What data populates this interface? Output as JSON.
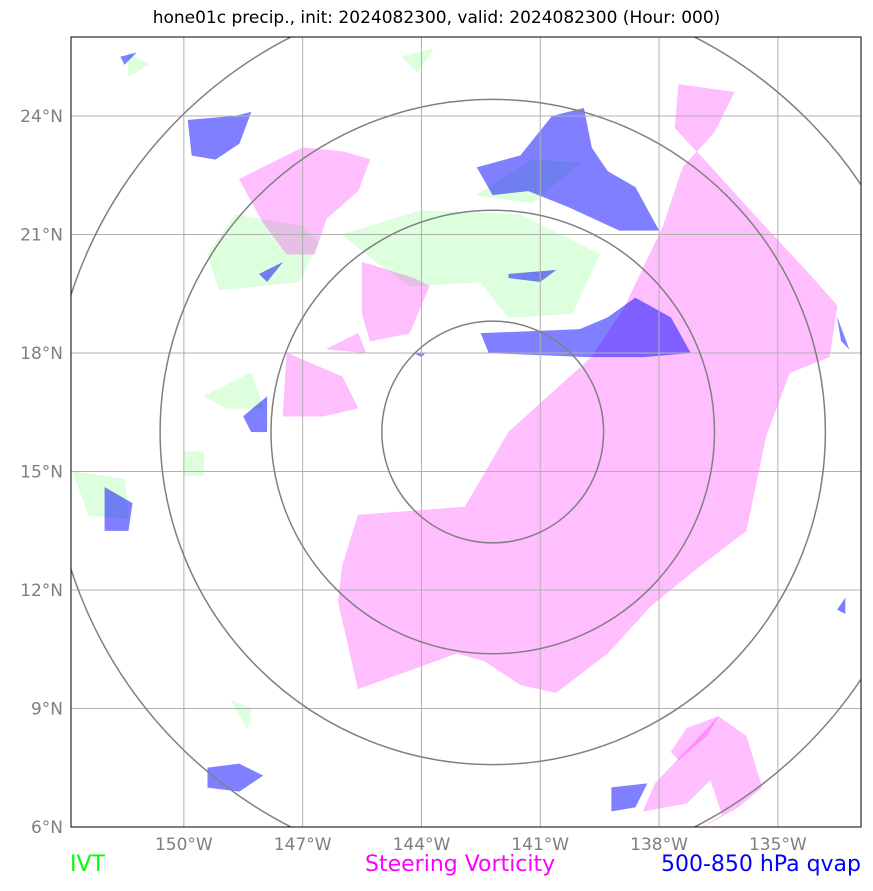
{
  "title": "hone01c precip., init: 2024082300, valid: 2024082300 (Hour: 000)",
  "legend": {
    "ivt": "IVT",
    "steering_vorticity": "Steering Vorticity",
    "qvap": "500-850 hPa qvap"
  },
  "colors": {
    "ivt": "#00ff00",
    "steering_vorticity": "#ff00ff",
    "qvap": "#0000ff",
    "grid": "#b0b0b0",
    "range_rings": "#808080"
  },
  "chart_data": {
    "type": "map",
    "title": "hone01c precip., init: 2024082300, valid: 2024082300 (Hour: 000)",
    "x_ticks": [
      "150°W",
      "147°W",
      "144°W",
      "141°W",
      "138°W",
      "135°W"
    ],
    "x_tick_values": [
      -150,
      -147,
      -144,
      -141,
      -138,
      -135
    ],
    "y_ticks": [
      "24°N",
      "21°N",
      "18°N",
      "15°N",
      "12°N",
      "9°N",
      "6°N"
    ],
    "y_tick_values": [
      24,
      21,
      18,
      15,
      12,
      9,
      6
    ],
    "xlim": [
      -152.85,
      -132.9
    ],
    "ylim": [
      6,
      26
    ],
    "center": [
      -142.2,
      16.0
    ],
    "range_rings_deg": [
      2.8,
      5.6,
      8.4,
      11.2
    ],
    "grid": true,
    "series": [
      {
        "name": "IVT",
        "color": "#00ff00",
        "polygons": [
          [
            [
              -149.1,
              19.6
            ],
            [
              -147.1,
              19.8
            ],
            [
              -146.6,
              20.8
            ],
            [
              -147.0,
              21.2
            ],
            [
              -148.7,
              21.5
            ],
            [
              -149.4,
              20.5
            ]
          ],
          [
            [
              -146.0,
              21.0
            ],
            [
              -144.0,
              21.6
            ],
            [
              -141.5,
              21.5
            ],
            [
              -139.5,
              20.5
            ],
            [
              -140.2,
              19.0
            ],
            [
              -141.8,
              18.9
            ],
            [
              -142.5,
              19.8
            ],
            [
              -144.3,
              19.7
            ],
            [
              -145.0,
              20.2
            ]
          ],
          [
            [
              -142.6,
              22.0
            ],
            [
              -141.2,
              22.9
            ],
            [
              -140.0,
              22.8
            ],
            [
              -141.2,
              21.8
            ]
          ],
          [
            [
              -149.5,
              16.9
            ],
            [
              -148.3,
              17.5
            ],
            [
              -148.0,
              16.6
            ],
            [
              -148.9,
              16.6
            ]
          ],
          [
            [
              -152.8,
              15.0
            ],
            [
              -151.5,
              14.8
            ],
            [
              -151.4,
              13.8
            ],
            [
              -152.4,
              13.9
            ]
          ],
          [
            [
              -150.0,
              15.5
            ],
            [
              -149.5,
              15.5
            ],
            [
              -149.5,
              14.9
            ],
            [
              -150.0,
              14.9
            ]
          ],
          [
            [
              -144.5,
              25.5
            ],
            [
              -143.7,
              25.7
            ],
            [
              -144.1,
              25.1
            ]
          ],
          [
            [
              -151.4,
              25.6
            ],
            [
              -150.9,
              25.3
            ],
            [
              -151.4,
              25.0
            ]
          ],
          [
            [
              -148.8,
              9.2
            ],
            [
              -148.3,
              9.0
            ],
            [
              -148.4,
              8.5
            ]
          ]
        ]
      },
      {
        "name": "Steering Vorticity",
        "color": "#ff00ff",
        "polygons": [
          [
            [
              -145.6,
              13.9
            ],
            [
              -142.9,
              14.1
            ],
            [
              -141.8,
              16.0
            ],
            [
              -139.7,
              17.9
            ],
            [
              -138.9,
              19.1
            ],
            [
              -137.9,
              21.2
            ],
            [
              -137.4,
              22.7
            ],
            [
              -136.6,
              23.6
            ],
            [
              -136.1,
              24.6
            ],
            [
              -137.5,
              24.8
            ],
            [
              -137.6,
              23.7
            ],
            [
              -136.5,
              22.5
            ],
            [
              -135.6,
              21.5
            ],
            [
              -134.3,
              20.1
            ],
            [
              -133.5,
              19.2
            ],
            [
              -133.7,
              17.9
            ],
            [
              -134.7,
              17.5
            ],
            [
              -135.3,
              15.9
            ],
            [
              -135.8,
              13.5
            ],
            [
              -137.1,
              12.5
            ],
            [
              -138.2,
              11.6
            ],
            [
              -139.3,
              10.4
            ],
            [
              -140.6,
              9.4
            ],
            [
              -141.5,
              9.6
            ],
            [
              -142.4,
              10.2
            ],
            [
              -143.1,
              10.4
            ],
            [
              -145.6,
              9.5
            ],
            [
              -146.1,
              11.7
            ],
            [
              -146.0,
              12.6
            ]
          ],
          [
            [
              -148.6,
              22.4
            ],
            [
              -147.0,
              23.2
            ],
            [
              -146.0,
              23.1
            ],
            [
              -145.3,
              22.9
            ],
            [
              -145.6,
              22.1
            ],
            [
              -146.4,
              21.4
            ],
            [
              -146.7,
              20.5
            ],
            [
              -147.4,
              20.5
            ],
            [
              -148.0,
              21.3
            ]
          ],
          [
            [
              -147.4,
              18.0
            ],
            [
              -146.0,
              17.4
            ],
            [
              -145.6,
              16.6
            ],
            [
              -146.5,
              16.4
            ],
            [
              -147.5,
              16.4
            ]
          ],
          [
            [
              -145.5,
              20.3
            ],
            [
              -144.2,
              19.9
            ],
            [
              -143.8,
              19.7
            ],
            [
              -144.3,
              18.5
            ],
            [
              -145.3,
              18.3
            ],
            [
              -145.5,
              19.0
            ]
          ],
          [
            [
              -146.4,
              18.1
            ],
            [
              -145.6,
              18.5
            ],
            [
              -145.4,
              18.0
            ]
          ],
          [
            [
              -136.5,
              8.8
            ],
            [
              -135.8,
              8.3
            ],
            [
              -135.4,
              7.0
            ],
            [
              -136.0,
              6.5
            ],
            [
              -136.9,
              6.0
            ],
            [
              -136.4,
              6.3
            ],
            [
              -136.7,
              7.2
            ],
            [
              -137.3,
              6.6
            ],
            [
              -138.4,
              6.4
            ],
            [
              -138.1,
              7.1
            ]
          ],
          [
            [
              -137.5,
              7.7
            ],
            [
              -136.8,
              8.3
            ],
            [
              -136.5,
              8.8
            ],
            [
              -137.3,
              8.5
            ],
            [
              -137.7,
              7.9
            ]
          ]
        ]
      },
      {
        "name": "500-850 hPa qvap",
        "color": "#0000ff",
        "polygons": [
          [
            [
              -142.6,
              22.7
            ],
            [
              -141.5,
              23.0
            ],
            [
              -140.7,
              24.0
            ],
            [
              -139.9,
              24.2
            ],
            [
              -139.7,
              23.2
            ],
            [
              -139.3,
              22.6
            ],
            [
              -138.6,
              22.2
            ],
            [
              -138.0,
              21.1
            ],
            [
              -139.0,
              21.1
            ],
            [
              -140.3,
              21.7
            ],
            [
              -141.3,
              22.1
            ],
            [
              -142.2,
              22.0
            ]
          ],
          [
            [
              -149.9,
              23.9
            ],
            [
              -148.7,
              24.0
            ],
            [
              -148.3,
              24.1
            ],
            [
              -148.6,
              23.3
            ],
            [
              -149.2,
              22.9
            ],
            [
              -149.8,
              23.0
            ]
          ],
          [
            [
              -148.1,
              20.0
            ],
            [
              -147.5,
              20.3
            ],
            [
              -147.9,
              19.8
            ]
          ],
          [
            [
              -141.8,
              20.0
            ],
            [
              -140.6,
              20.1
            ],
            [
              -141.0,
              19.8
            ],
            [
              -141.8,
              19.9
            ]
          ],
          [
            [
              -142.5,
              18.5
            ],
            [
              -140.0,
              18.6
            ],
            [
              -139.3,
              18.9
            ],
            [
              -138.6,
              19.4
            ],
            [
              -137.7,
              18.9
            ],
            [
              -137.2,
              18.0
            ],
            [
              -138.4,
              17.9
            ],
            [
              -139.8,
              17.9
            ],
            [
              -142.3,
              18.0
            ]
          ],
          [
            [
              -148.5,
              16.4
            ],
            [
              -147.9,
              16.9
            ],
            [
              -147.9,
              16.0
            ],
            [
              -148.3,
              16.0
            ]
          ],
          [
            [
              -152.0,
              14.6
            ],
            [
              -151.3,
              14.2
            ],
            [
              -151.4,
              13.5
            ],
            [
              -152.0,
              13.5
            ]
          ],
          [
            [
              -149.4,
              7.5
            ],
            [
              -148.6,
              7.6
            ],
            [
              -148.0,
              7.3
            ],
            [
              -148.6,
              6.9
            ],
            [
              -149.4,
              7.0
            ]
          ],
          [
            [
              -139.2,
              7.0
            ],
            [
              -138.3,
              7.1
            ],
            [
              -138.6,
              6.5
            ],
            [
              -139.2,
              6.4
            ]
          ],
          [
            [
              -133.5,
              18.9
            ],
            [
              -133.2,
              18.1
            ],
            [
              -133.4,
              18.3
            ]
          ],
          [
            [
              -133.3,
              11.8
            ],
            [
              -133.3,
              11.4
            ],
            [
              -133.5,
              11.5
            ]
          ],
          [
            [
              -144.2,
              18.0
            ],
            [
              -143.9,
              18.0
            ],
            [
              -144.0,
              17.9
            ]
          ],
          [
            [
              -151.6,
              25.5
            ],
            [
              -151.2,
              25.6
            ],
            [
              -151.5,
              25.3
            ]
          ]
        ]
      }
    ]
  }
}
